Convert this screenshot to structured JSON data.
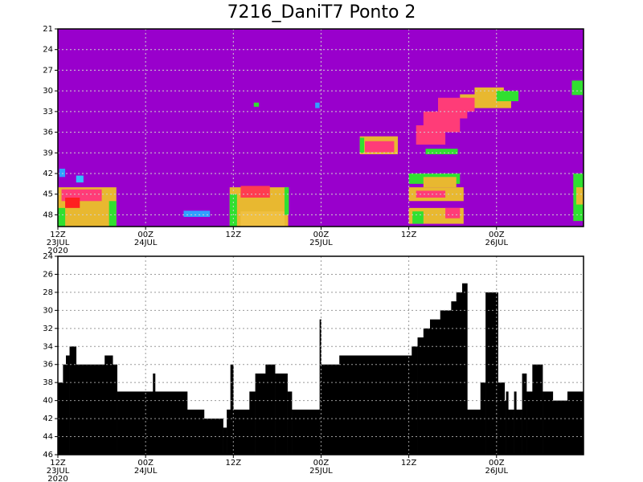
{
  "chart_data": [
    {
      "type": "heatmap",
      "title": "7216_DaniT7 Ponto 2",
      "background": "#9900cc",
      "xlim": [
        0,
        71.9
      ],
      "ylim": [
        21,
        49.7
      ],
      "y_inverted": true,
      "grid": true,
      "xticks": [
        {
          "value": 0,
          "label": "12Z",
          "date": "23JUL",
          "year": "2020"
        },
        {
          "value": 12,
          "label": "00Z",
          "date": "24JUL"
        },
        {
          "value": 24,
          "label": "12Z"
        },
        {
          "value": 36,
          "label": "00Z",
          "date": "25JUL"
        },
        {
          "value": 48,
          "label": "12Z"
        },
        {
          "value": 60,
          "label": "00Z",
          "date": "26JUL"
        }
      ],
      "yticks": [
        21,
        24,
        27,
        30,
        33,
        36,
        39,
        42,
        45,
        48
      ],
      "cells": [
        {
          "x": [
            0,
            8
          ],
          "y": [
            44,
            49.7
          ],
          "color": "#e8b830"
        },
        {
          "x": [
            0.5,
            6
          ],
          "y": [
            44.3,
            46
          ],
          "color": "#ff3c78"
        },
        {
          "x": [
            1,
            3
          ],
          "y": [
            45.5,
            47
          ],
          "color": "#ff2020"
        },
        {
          "x": [
            0,
            1
          ],
          "y": [
            47,
            49.7
          ],
          "color": "#30e030"
        },
        {
          "x": [
            7,
            8
          ],
          "y": [
            46,
            49.7
          ],
          "color": "#30e030"
        },
        {
          "x": [
            0.2,
            1
          ],
          "y": [
            41.3,
            42.5
          ],
          "color": "#30a0ff"
        },
        {
          "x": [
            2.5,
            3.5
          ],
          "y": [
            42.3,
            43.3
          ],
          "color": "#30c0ff"
        },
        {
          "x": [
            23.5,
            31.5
          ],
          "y": [
            44,
            49.7
          ],
          "color": "#e8b830"
        },
        {
          "x": [
            25,
            29
          ],
          "y": [
            43.8,
            45.5
          ],
          "color": "#ff3c50"
        },
        {
          "x": [
            23.5,
            24.5
          ],
          "y": [
            45,
            49.7
          ],
          "color": "#30e030"
        },
        {
          "x": [
            31,
            31.6
          ],
          "y": [
            44,
            48
          ],
          "color": "#30e030"
        },
        {
          "x": [
            25,
            31
          ],
          "y": [
            47.5,
            49.7
          ],
          "color": "#f0c040"
        },
        {
          "x": [
            17.2,
            20.8
          ],
          "y": [
            47.4,
            48.3
          ],
          "color": "#30a0ff"
        },
        {
          "x": [
            26.8,
            27.5
          ],
          "y": [
            31.7,
            32.3
          ],
          "color": "#30e030"
        },
        {
          "x": [
            35.2,
            35.8
          ],
          "y": [
            31.7,
            32.5
          ],
          "color": "#30a0ff"
        },
        {
          "x": [
            41.3,
            46.5
          ],
          "y": [
            36.6,
            39.2
          ],
          "color": "#e8b830"
        },
        {
          "x": [
            42,
            46
          ],
          "y": [
            37.3,
            38.9
          ],
          "color": "#ff3c78"
        },
        {
          "x": [
            41.3,
            41.9
          ],
          "y": [
            36.8,
            39
          ],
          "color": "#30e030"
        },
        {
          "x": [
            50.3,
            54.7
          ],
          "y": [
            38.4,
            39.2
          ],
          "color": "#30e030"
        },
        {
          "x": [
            48,
            55
          ],
          "y": [
            42,
            43.5
          ],
          "color": "#30e030"
        },
        {
          "x": [
            50,
            54.5
          ],
          "y": [
            42.5,
            44
          ],
          "color": "#e8b830"
        },
        {
          "x": [
            48,
            55.5
          ],
          "y": [
            44,
            46
          ],
          "color": "#e8b830"
        },
        {
          "x": [
            49,
            53
          ],
          "y": [
            44.5,
            45.5
          ],
          "color": "#ff3c78"
        },
        {
          "x": [
            48,
            55.5
          ],
          "y": [
            47,
            49.3
          ],
          "color": "#e8b830"
        },
        {
          "x": [
            48.5,
            50
          ],
          "y": [
            47.5,
            49.3
          ],
          "color": "#30e030"
        },
        {
          "x": [
            53,
            55
          ],
          "y": [
            47,
            48.5
          ],
          "color": "#ff3c78"
        },
        {
          "x": [
            55,
            62
          ],
          "y": [
            30.5,
            32.5
          ],
          "color": "#e8b830"
        },
        {
          "x": [
            57,
            61
          ],
          "y": [
            29.5,
            31
          ],
          "color": "#e8b830"
        },
        {
          "x": [
            60,
            63
          ],
          "y": [
            30,
            31.5
          ],
          "color": "#30e030"
        },
        {
          "x": [
            49,
            53
          ],
          "y": [
            35,
            37.8
          ],
          "color": "#ff3c78"
        },
        {
          "x": [
            50,
            55
          ],
          "y": [
            33,
            36
          ],
          "color": "#ff3c78"
        },
        {
          "x": [
            52,
            56
          ],
          "y": [
            31,
            34
          ],
          "color": "#ff3c78"
        },
        {
          "x": [
            55,
            57
          ],
          "y": [
            31,
            33
          ],
          "color": "#ff3c78"
        },
        {
          "x": [
            70.3,
            71.8
          ],
          "y": [
            28.5,
            30.6
          ],
          "color": "#30e030"
        },
        {
          "x": [
            70.5,
            71.9
          ],
          "y": [
            42,
            48.9
          ],
          "color": "#30e030"
        },
        {
          "x": [
            70.9,
            71.9
          ],
          "y": [
            44,
            46.5
          ],
          "color": "#e8b830"
        }
      ]
    },
    {
      "type": "step-area",
      "color": "#000000",
      "xlim": [
        0,
        71.9
      ],
      "ylim": [
        24,
        46
      ],
      "y_inverted": true,
      "grid": true,
      "xticks": [
        {
          "value": 0,
          "label": "12Z",
          "date": "23JUL",
          "year": "2020"
        },
        {
          "value": 12,
          "label": "00Z",
          "date": "24JUL"
        },
        {
          "value": 24,
          "label": "12Z"
        },
        {
          "value": 36,
          "label": "00Z",
          "date": "25JUL"
        },
        {
          "value": 48,
          "label": "12Z"
        },
        {
          "value": 60,
          "label": "00Z",
          "date": "26JUL"
        }
      ],
      "yticks": [
        24,
        26,
        28,
        30,
        32,
        34,
        36,
        38,
        40,
        42,
        44,
        46
      ],
      "x": [
        0,
        0.7,
        1.1,
        1.6,
        2.5,
        6.4,
        7.5,
        8.1,
        13,
        13.3,
        17.7,
        20,
        22.6,
        23.1,
        23.6,
        24,
        26.2,
        27,
        28.4,
        29.7,
        31.4,
        32,
        35.8,
        36,
        38.5,
        48.4,
        49.2,
        50,
        50.9,
        52.3,
        53.8,
        54.5,
        55.3,
        56,
        57.8,
        58.5,
        60.2,
        61.1,
        61.3,
        61.6,
        62.4,
        62.7,
        63.5,
        64.1,
        64.9,
        66.3,
        67.7,
        69.7
      ],
      "values": [
        38,
        36,
        35,
        34,
        36,
        35,
        36,
        39,
        37,
        39,
        41,
        42,
        43,
        41,
        36,
        41,
        39,
        37,
        36,
        37,
        39,
        41,
        31,
        36,
        35,
        34,
        33,
        32,
        31,
        30,
        29,
        28,
        27,
        41,
        38,
        28,
        38,
        40,
        39,
        41,
        39,
        41,
        37,
        39,
        36,
        39,
        40,
        39
      ]
    }
  ]
}
